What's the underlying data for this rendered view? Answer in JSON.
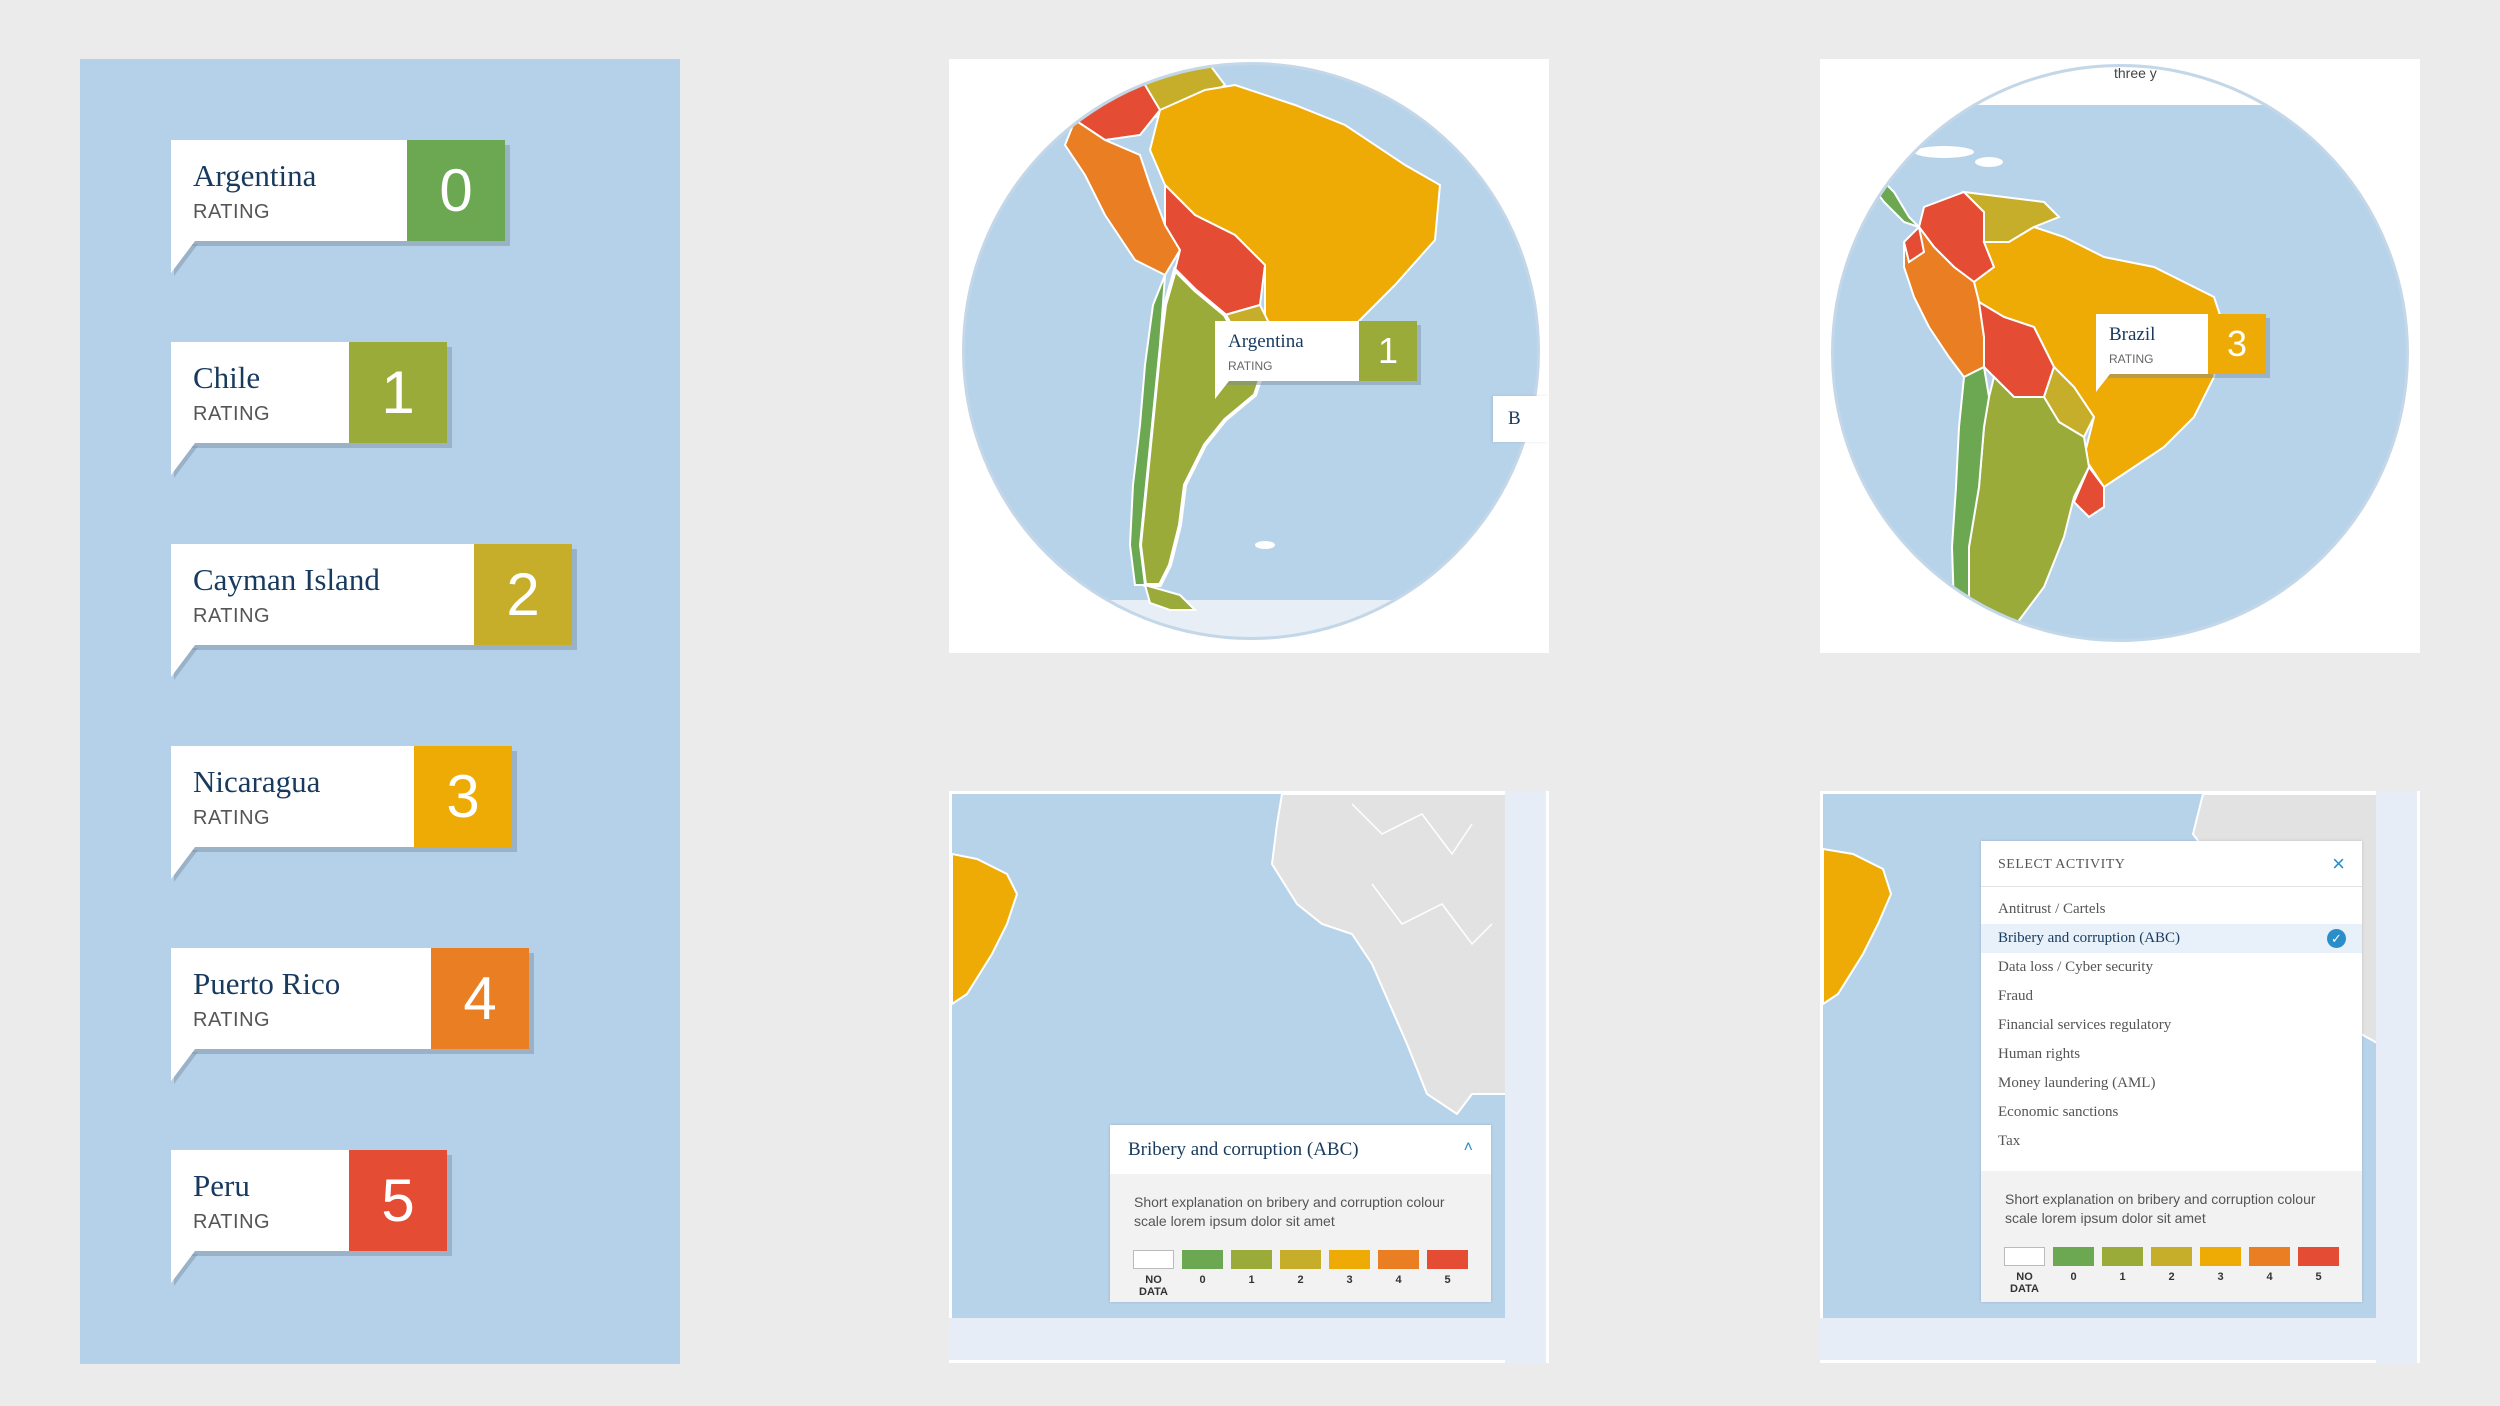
{
  "colors": {
    "r0": "#6ba851",
    "r1": "#9aab3a",
    "r2": "#c6ae2a",
    "r3": "#eeaa05",
    "r4": "#ea7e22",
    "r5": "#e44d34",
    "ocean": "#b7d3ea",
    "navy": "#173a5e",
    "accent": "#2a8fc8"
  },
  "rating_list": [
    {
      "name": "Argentina",
      "label": "RATING",
      "value": "0"
    },
    {
      "name": "Chile",
      "label": "RATING",
      "value": "1"
    },
    {
      "name": "Cayman Island",
      "label": "RATING",
      "value": "2"
    },
    {
      "name": "Nicaragua",
      "label": "RATING",
      "value": "3"
    },
    {
      "name": "Puerto Rico",
      "label": "RATING",
      "value": "4"
    },
    {
      "name": "Peru",
      "label": "RATING",
      "value": "5"
    }
  ],
  "map1": {
    "tooltip": {
      "name": "Argentina",
      "label": "RATING",
      "value": "1"
    },
    "partial_label": "B"
  },
  "map2": {
    "top_text": "three y",
    "tooltip": {
      "name": "Brazil",
      "label": "RATING",
      "value": "3"
    }
  },
  "legend": {
    "title": "Bribery and corruption (ABC)",
    "description": "Short explanation on bribery and corruption colour scale lorem ipsum dolor sit amet",
    "items": [
      "NO DATA",
      "0",
      "1",
      "2",
      "3",
      "4",
      "5"
    ]
  },
  "activity_menu": {
    "header": "SELECT ACTIVITY",
    "items": [
      "Antitrust / Cartels",
      "Bribery and corruption (ABC)",
      "Data loss / Cyber security",
      "Fraud",
      "Financial services regulatory",
      "Human rights",
      "Money laundering (AML)",
      "Economic sanctions",
      "Tax"
    ],
    "selected": "Bribery and corruption (ABC)"
  }
}
